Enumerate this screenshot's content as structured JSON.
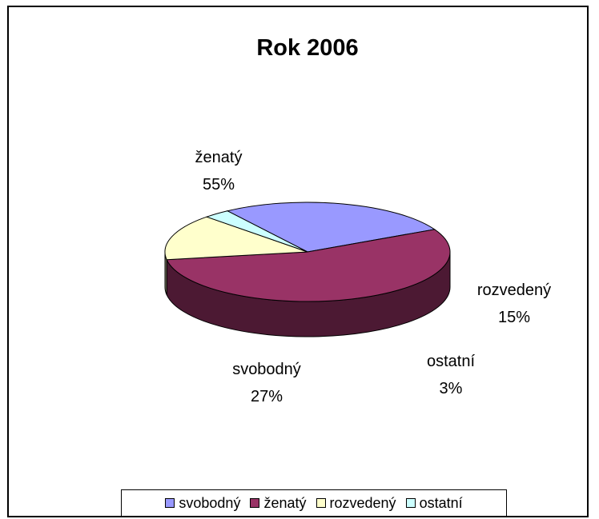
{
  "chart_data": {
    "type": "pie",
    "style": "3d",
    "title": "Rok 2006",
    "slices": [
      {
        "name": "svobodný",
        "percent": 27,
        "label_value": "27%",
        "color": "#9999ff",
        "side_color": "#4c4c80"
      },
      {
        "name": "ženatý",
        "percent": 55,
        "label_value": "55%",
        "color": "#993366",
        "side_color": "#4c1933"
      },
      {
        "name": "rozvedený",
        "percent": 15,
        "label_value": "15%",
        "color": "#ffffcc",
        "side_color": "#808066"
      },
      {
        "name": "ostatní",
        "percent": 3,
        "label_value": "3%",
        "color": "#ccffff",
        "side_color": "#668080"
      }
    ],
    "legend_position": "bottom"
  }
}
